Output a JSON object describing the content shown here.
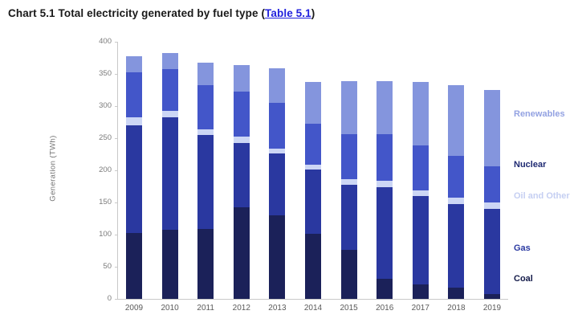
{
  "title": {
    "prefix": "Chart 5.1 Total electricity generated by fuel type (",
    "link_text": "Table 5.1",
    "suffix": ")"
  },
  "chart_data": {
    "type": "bar",
    "stacked": true,
    "title": "Chart 5.1 Total electricity generated by fuel type (Table 5.1)",
    "ylabel": "Generation (TWh)",
    "ylim": [
      0,
      400
    ],
    "yticks": [
      0,
      50,
      100,
      150,
      200,
      250,
      300,
      350,
      400
    ],
    "grid": false,
    "legend_position": "right",
    "categories": [
      "2009",
      "2010",
      "2011",
      "2012",
      "2013",
      "2014",
      "2015",
      "2016",
      "2017",
      "2018",
      "2019"
    ],
    "series": [
      {
        "name": "Coal",
        "color": "#1b2159",
        "label_color": "#141b4a",
        "values": [
          103,
          108,
          109,
          143,
          130,
          101,
          76,
          31,
          23,
          17,
          7
        ]
      },
      {
        "name": "Gas",
        "color": "#2a38a0",
        "label_color": "#2b3aa2",
        "values": [
          167,
          174,
          146,
          100,
          96,
          100,
          101,
          143,
          137,
          131,
          133
        ]
      },
      {
        "name": "Oil and Other",
        "color": "#ccd6f5",
        "label_color": "#c5cff2",
        "values": [
          13,
          10,
          9,
          9,
          8,
          8,
          9,
          10,
          9,
          9,
          10
        ]
      },
      {
        "name": "Nuclear",
        "color": "#4356c9",
        "label_color": "#1f2a72",
        "values": [
          69,
          65,
          69,
          70,
          71,
          64,
          70,
          72,
          70,
          65,
          56
        ]
      },
      {
        "name": "Renewables",
        "color": "#8495dd",
        "label_color": "#93a2e2",
        "values": [
          26,
          26,
          35,
          42,
          54,
          65,
          83,
          83,
          99,
          111,
          119
        ]
      }
    ],
    "legend_order": [
      "Renewables",
      "Nuclear",
      "Oil and Other",
      "Gas",
      "Coal"
    ]
  }
}
